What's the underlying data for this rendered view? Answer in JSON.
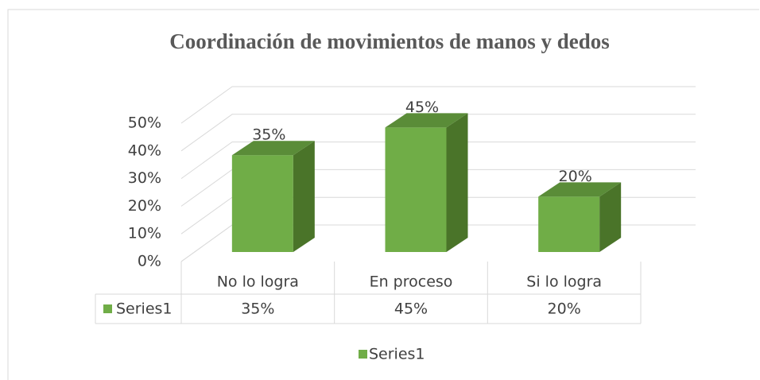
{
  "chart_data": {
    "type": "bar3d",
    "title": "Coordinación de movimientos de manos y dedos",
    "categories": [
      "No lo logra",
      "En proceso",
      "Si lo logra"
    ],
    "series": [
      {
        "name": "Series1",
        "color": "#70ad47",
        "values": [
          35,
          45,
          20
        ],
        "value_labels": [
          "35%",
          "45%",
          "20%"
        ]
      }
    ],
    "ylim": [
      0,
      50
    ],
    "yticks": [
      {
        "value": 0,
        "label": "0%"
      },
      {
        "value": 10,
        "label": "10%"
      },
      {
        "value": 20,
        "label": "20%"
      },
      {
        "value": 30,
        "label": "30%"
      },
      {
        "value": 40,
        "label": "40%"
      },
      {
        "value": 50,
        "label": "50%"
      }
    ],
    "grid": true,
    "data_table": true,
    "legend": "bottom"
  }
}
